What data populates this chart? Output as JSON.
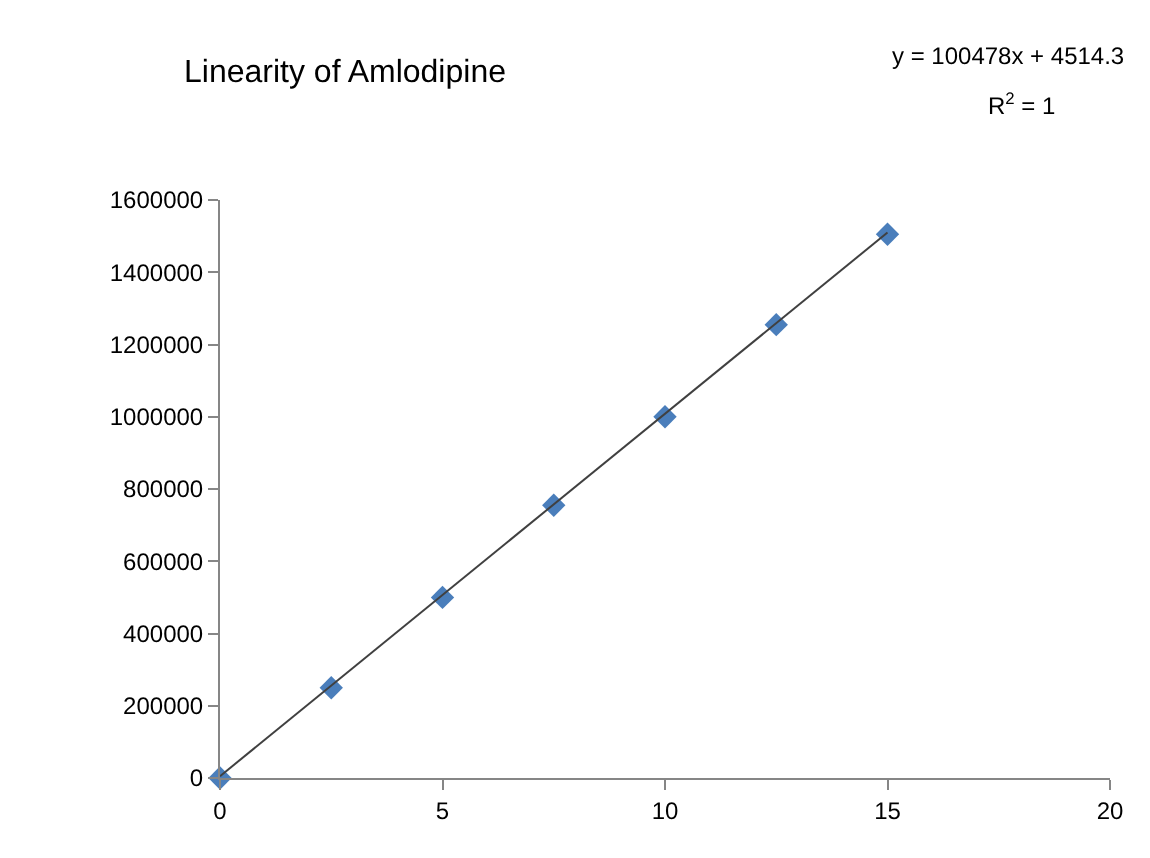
{
  "chart_data": {
    "type": "scatter",
    "title": "Linearity of Amlodipine",
    "annotations": [
      "y = 100478x + 4514.3",
      "R$^{2}$ = 1"
    ],
    "series": [
      {
        "color": "#4a7ebb",
        "marker": "diamond",
        "x": [
          0,
          2.5,
          5,
          7.5,
          10,
          12.5,
          15
        ],
        "values": [
          0,
          250000,
          500000,
          755000,
          1000000,
          1255000,
          1505000
        ]
      },
      {
        "type": "line",
        "color": "#404040",
        "marker": "none",
        "x": [
          0,
          15
        ],
        "values": [
          5000,
          1510000
        ]
      }
    ],
    "xlim": [
      0,
      20
    ],
    "xticks": [
      0,
      5,
      10,
      15,
      20
    ],
    "ylim": [
      0,
      1600000
    ],
    "yticks": [
      0,
      200000,
      400000,
      600000,
      800000,
      1000000,
      1200000,
      1400000,
      1600000
    ],
    "grid": false
  }
}
